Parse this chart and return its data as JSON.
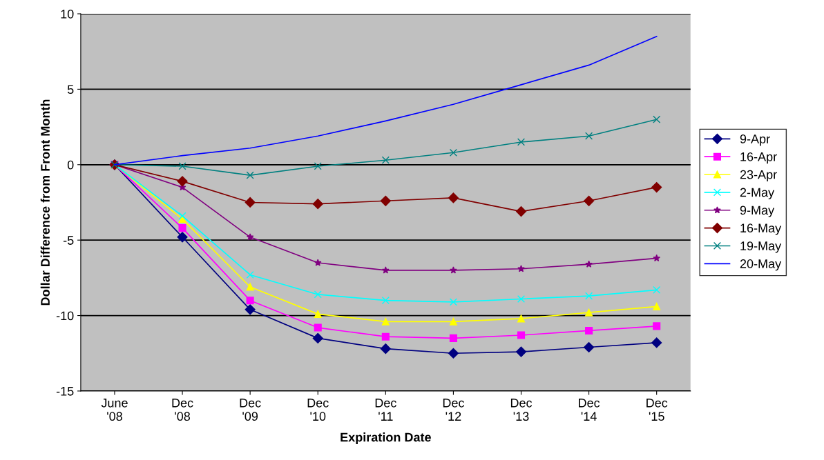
{
  "chart_data": {
    "type": "line",
    "xlabel": "Expiration Date",
    "ylabel": "Dollar Difference from Front Month",
    "categories": [
      "June\n'08",
      "Dec\n'08",
      "Dec\n'09",
      "Dec\n'10",
      "Dec\n'11",
      "Dec\n'12",
      "Dec\n'13",
      "Dec\n'14",
      "Dec\n'15"
    ],
    "ylim": [
      -15,
      10
    ],
    "yticks": [
      -15,
      -10,
      -5,
      0,
      5,
      10
    ],
    "grid": "y",
    "legend": "right",
    "series": [
      {
        "name": "9-Apr",
        "color": "#000080",
        "marker": "diamond",
        "values": [
          0,
          -4.8,
          -9.6,
          -11.5,
          -12.2,
          -12.5,
          -12.4,
          -12.1,
          -11.8
        ]
      },
      {
        "name": "16-Apr",
        "color": "#ff00ff",
        "marker": "square",
        "values": [
          0,
          -4.2,
          -9.0,
          -10.8,
          -11.4,
          -11.5,
          -11.3,
          -11.0,
          -10.7
        ]
      },
      {
        "name": "23-Apr",
        "color": "#ffff00",
        "marker": "triangle",
        "values": [
          0,
          -3.6,
          -8.1,
          -9.9,
          -10.4,
          -10.4,
          -10.2,
          -9.8,
          -9.4
        ]
      },
      {
        "name": "2-May",
        "color": "#00ffff",
        "marker": "cross",
        "values": [
          0,
          -3.4,
          -7.3,
          -8.6,
          -9.0,
          -9.1,
          -8.9,
          -8.7,
          -8.3
        ]
      },
      {
        "name": "9-May",
        "color": "#800080",
        "marker": "star",
        "values": [
          0,
          -1.5,
          -4.8,
          -6.5,
          -7.0,
          -7.0,
          -6.9,
          -6.6,
          -6.2
        ]
      },
      {
        "name": "16-May",
        "color": "#800000",
        "marker": "diamond",
        "values": [
          0,
          -1.1,
          -2.5,
          -2.6,
          -2.4,
          -2.2,
          -3.1,
          -2.4,
          -1.5
        ]
      },
      {
        "name": "19-May",
        "color": "#008080",
        "marker": "cross",
        "values": [
          0,
          -0.1,
          -0.7,
          -0.1,
          0.3,
          0.8,
          1.5,
          1.9,
          3.0
        ]
      },
      {
        "name": "20-May",
        "color": "#0000ff",
        "marker": "none",
        "values": [
          0,
          0.6,
          1.1,
          1.9,
          2.9,
          4.0,
          5.3,
          6.6,
          8.5
        ]
      }
    ]
  }
}
